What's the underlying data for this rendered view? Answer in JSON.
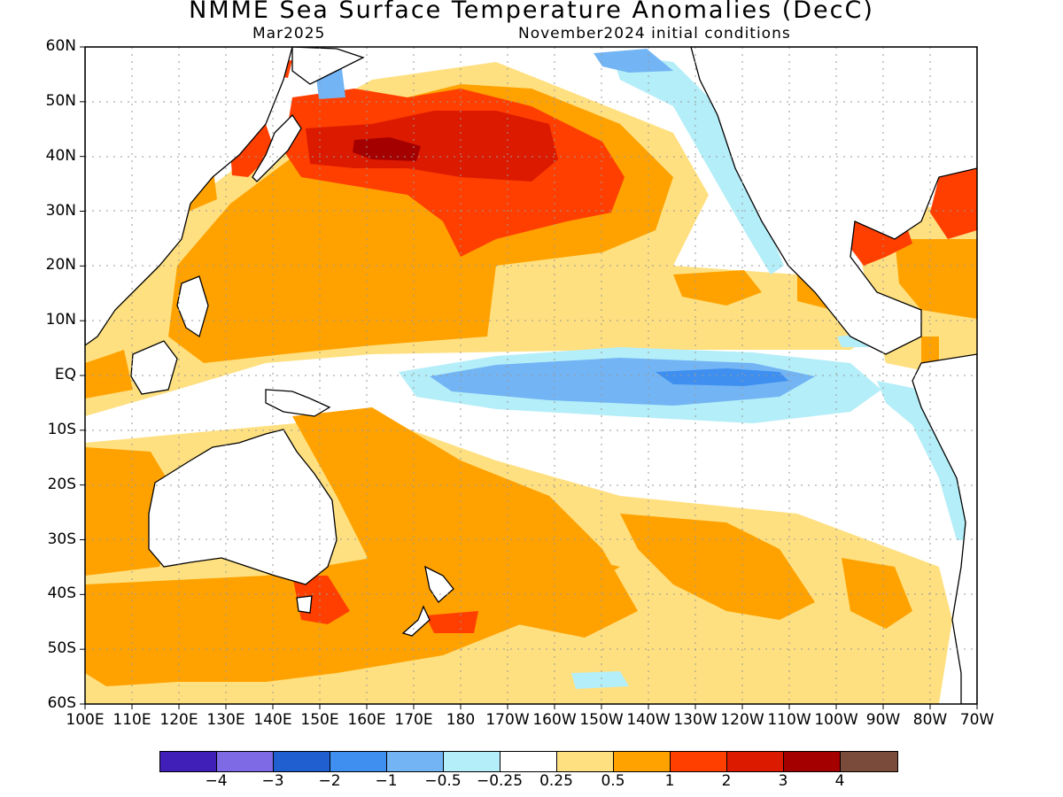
{
  "title": "NMME Sea Surface Temperature Anomalies (DecC)",
  "subtitle_left": "Mar2025",
  "subtitle_right": "November2024 initial conditions",
  "lat_labels": [
    "60N",
    "50N",
    "40N",
    "30N",
    "20N",
    "10N",
    "EQ",
    "10S",
    "20S",
    "30S",
    "40S",
    "50S",
    "60S"
  ],
  "lon_labels": [
    "100E",
    "110E",
    "120E",
    "130E",
    "140E",
    "150E",
    "160E",
    "170E",
    "180",
    "170W",
    "160W",
    "150W",
    "140W",
    "130W",
    "120W",
    "110W",
    "100W",
    "90W",
    "80W",
    "70W"
  ],
  "colorbar": {
    "colors": [
      "#3f1fb8",
      "#7f6ae6",
      "#1f5fd0",
      "#3f8ff0",
      "#72b4f4",
      "#b4eef8",
      "#ffffff",
      "#ffe080",
      "#ffa200",
      "#ff3f00",
      "#dc1a00",
      "#a50000",
      "#7a4a3a"
    ],
    "labels": [
      "−4",
      "−3",
      "−2",
      "−1",
      "−0.5",
      "−0.25",
      "0.25",
      "0.5",
      "1",
      "2",
      "3",
      "4"
    ]
  },
  "map_colors": {
    "ocean_neutral": "#ffffff",
    "land": "#ffffff",
    "coastline": "#000000",
    "gridline": "#999999"
  }
}
